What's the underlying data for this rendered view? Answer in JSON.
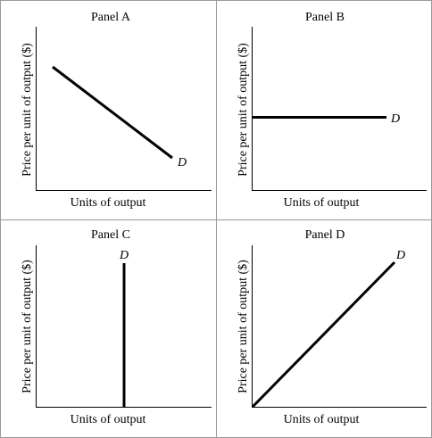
{
  "panels": [
    {
      "title": "Panel A",
      "xlabel": "Units of output",
      "ylabel": "Price per unit of output ($)",
      "curve_label": "D",
      "curve_shape": "downward-sloping line"
    },
    {
      "title": "Panel B",
      "xlabel": "Units of output",
      "ylabel": "Price per unit of output ($)",
      "curve_label": "D",
      "curve_shape": "horizontal line"
    },
    {
      "title": "Panel C",
      "xlabel": "Units of output",
      "ylabel": "Price per unit of output ($)",
      "curve_label": "D",
      "curve_shape": "vertical line"
    },
    {
      "title": "Panel D",
      "xlabel": "Units of output",
      "ylabel": "Price per unit of output ($)",
      "curve_label": "D",
      "curve_shape": "upward-sloping line from origin"
    }
  ]
}
